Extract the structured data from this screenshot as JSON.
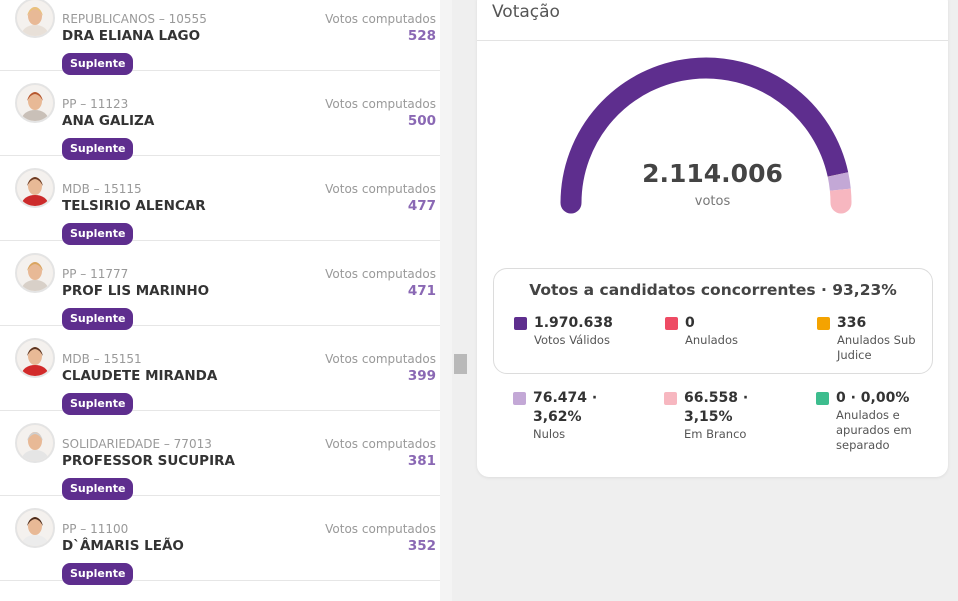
{
  "candidates": [
    {
      "party": "REPUBLICANOS – 10555",
      "name": "DRA ELIANA LAGO",
      "votes_label": "Votos computados",
      "votes": "528",
      "badge": "Suplente"
    },
    {
      "party": "PP – 11123",
      "name": "ANA GALIZA",
      "votes_label": "Votos computados",
      "votes": "500",
      "badge": "Suplente"
    },
    {
      "party": "MDB – 15115",
      "name": "TELSIRIO ALENCAR",
      "votes_label": "Votos computados",
      "votes": "477",
      "badge": "Suplente"
    },
    {
      "party": "PP – 11777",
      "name": "PROF LIS MARINHO",
      "votes_label": "Votos computados",
      "votes": "471",
      "badge": "Suplente"
    },
    {
      "party": "MDB – 15151",
      "name": "CLAUDETE MIRANDA",
      "votes_label": "Votos computados",
      "votes": "399",
      "badge": "Suplente"
    },
    {
      "party": "SOLIDARIEDADE – 77013",
      "name": "PROFESSOR SUCUPIRA",
      "votes_label": "Votos computados",
      "votes": "381",
      "badge": "Suplente"
    },
    {
      "party": "PP – 11100",
      "name": "D`ÂMARIS LEÃO",
      "votes_label": "Votos computados",
      "votes": "352",
      "badge": "Suplente"
    }
  ],
  "panel": {
    "title": "Votação",
    "total": "2.114.006",
    "total_unit": "votos",
    "summary": {
      "title": "Votos a candidatos concorrentes · 93,23%",
      "items": [
        {
          "value": "1.970.638",
          "label": "Votos Válidos",
          "color": "#5e2e8e"
        },
        {
          "value": "0",
          "label": "Anulados",
          "color": "#ee4b64"
        },
        {
          "value": "336",
          "label": "Anulados Sub Judice",
          "color": "#f4a300"
        }
      ]
    },
    "extra": [
      {
        "value": "76.474 · 3,62%",
        "label": "Nulos",
        "color": "#c3a8d6"
      },
      {
        "value": "66.558 · 3,15%",
        "label": "Em Branco",
        "color": "#f7b7c0"
      },
      {
        "value": "0 · 0,00%",
        "label": "Anulados e apurados em separado",
        "color": "#3dbd8e"
      }
    ]
  }
}
